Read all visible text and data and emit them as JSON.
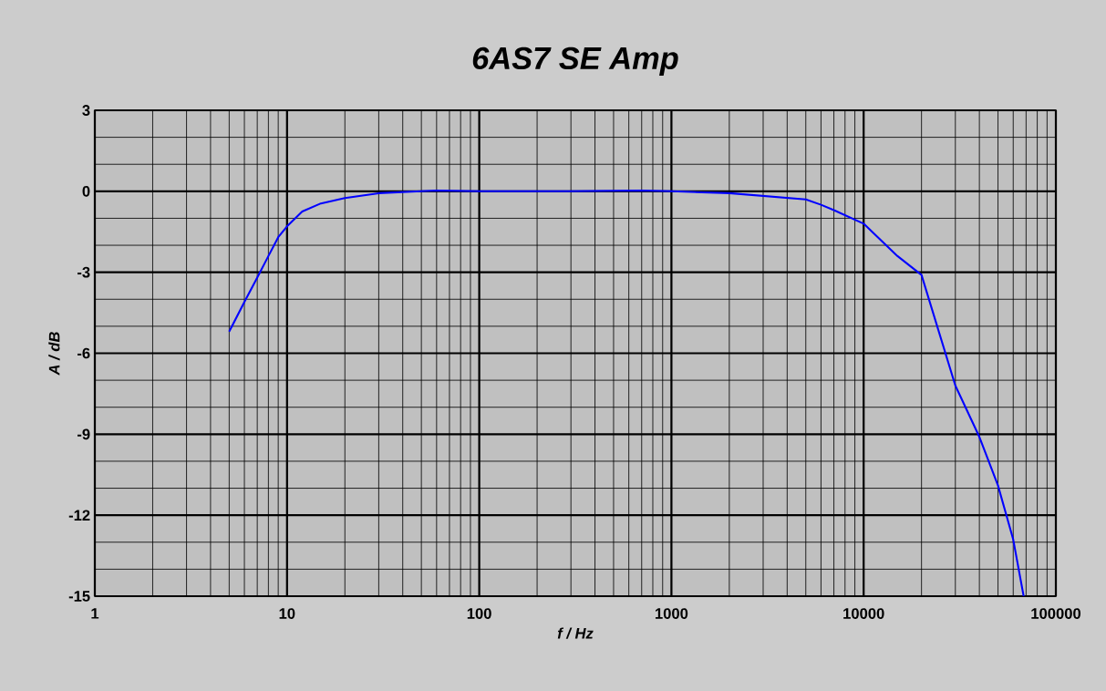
{
  "chart_data": {
    "type": "line",
    "title": "6AS7 SE Amp",
    "xlabel": "f / Hz",
    "ylabel": "A / dB",
    "log": "x",
    "grid": true,
    "marker": "none",
    "line_style": "solid",
    "xlim": [
      1,
      100000
    ],
    "xticks": [
      1,
      10,
      100,
      1000,
      10000,
      100000
    ],
    "ylim": [
      -15,
      3
    ],
    "yticks": [
      -15,
      -12,
      -9,
      -6,
      -3,
      0,
      3
    ],
    "series": [
      {
        "color": "#0000ff",
        "x": [
          5,
          6,
          7,
          8,
          9,
          10,
          12,
          15,
          20,
          30,
          50,
          60,
          100,
          300,
          700,
          1000,
          2000,
          5000,
          6000,
          7000,
          10000,
          15000,
          20000,
          30000,
          40000,
          50000,
          60000,
          68000
        ],
        "values": [
          -5.2,
          -4.1,
          -3.2,
          -2.4,
          -1.7,
          -1.3,
          -0.75,
          -0.45,
          -0.25,
          -0.07,
          0,
          0.03,
          0,
          0,
          0.03,
          0,
          -0.07,
          -0.3,
          -0.5,
          -0.7,
          -1.2,
          -2.4,
          -3.1,
          -7.2,
          -9.1,
          -10.9,
          -12.9,
          -15
        ]
      }
    ]
  }
}
